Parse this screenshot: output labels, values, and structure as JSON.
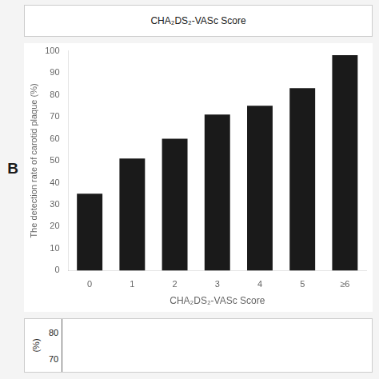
{
  "chart_data": {
    "type": "bar",
    "categories": [
      "0",
      "1",
      "2",
      "3",
      "4",
      "5",
      "≥6"
    ],
    "values": [
      35,
      51,
      60,
      71,
      75,
      83,
      98
    ],
    "color": "#1a1a1a",
    "xlabel": "CHA₂DS₂-VASc Score",
    "ylabel": "The detection rate of carotid plaque (%)",
    "ylim": [
      0,
      100
    ],
    "yticks": [
      0,
      10,
      20,
      30,
      40,
      50,
      60,
      70,
      80,
      90,
      100
    ],
    "grid": false,
    "annotations": [
      "CHA₂DS₂-VASc Score",
      "B",
      "(%)",
      "80",
      "70"
    ]
  }
}
